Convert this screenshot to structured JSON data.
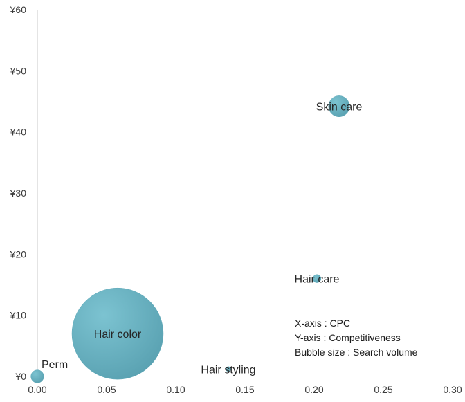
{
  "chart_data": {
    "type": "bubble",
    "xlim": [
      0,
      0.3
    ],
    "ylim": [
      0,
      60
    ],
    "x_ticks": [
      "0.00",
      "0.05",
      "0.10",
      "0.15",
      "0.20",
      "0.25",
      "0.30"
    ],
    "y_ticks": [
      "¥0",
      "¥10",
      "¥20",
      "¥30",
      "¥40",
      "¥50",
      "¥60"
    ],
    "grid": false,
    "bubble_color": "#5fa9b9",
    "points": [
      {
        "label": "Perm",
        "x": 0.0,
        "y": 0.0,
        "size": 2
      },
      {
        "label": "Hair color",
        "x": 0.058,
        "y": 7.0,
        "size": 100
      },
      {
        "label": "Hair styling",
        "x": 0.138,
        "y": 1.2,
        "size": 0.3
      },
      {
        "label": "Hair care",
        "x": 0.202,
        "y": 16.0,
        "size": 0.8
      },
      {
        "label": "Skin care",
        "x": 0.218,
        "y": 44.2,
        "size": 5.3
      }
    ],
    "notes": [
      "X-axis : CPC",
      "Y-axis : Competitiveness",
      "Bubble size : Search volume"
    ]
  }
}
